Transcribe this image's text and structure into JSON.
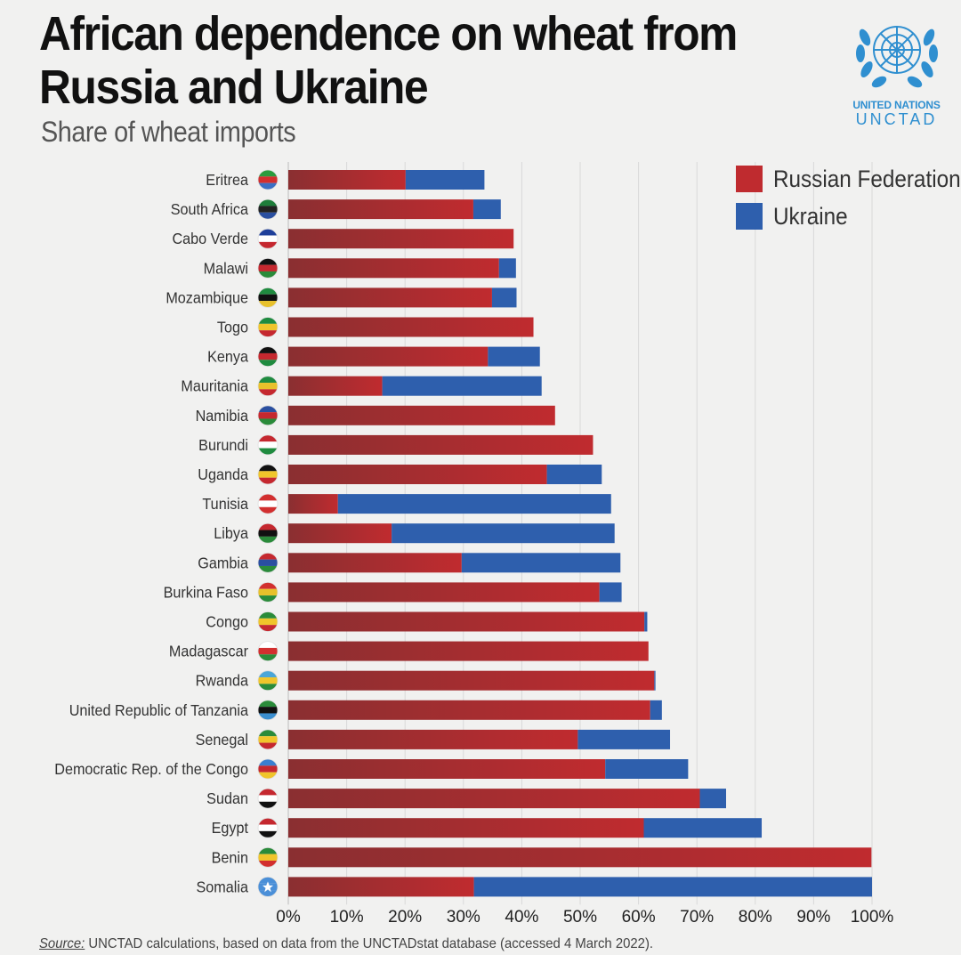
{
  "header": {
    "title": "African dependence on wheat from Russia and Ukraine",
    "subtitle": "Share of wheat imports"
  },
  "logo": {
    "name": "un-emblem-icon",
    "line1": "UNITED NATIONS",
    "line2": "UNCTAD",
    "color": "#2f8fd0"
  },
  "chart_data": {
    "type": "bar",
    "orientation": "horizontal",
    "stacked": true,
    "title": "",
    "xlabel": "",
    "ylabel": "",
    "xlim": [
      0,
      100
    ],
    "grid": true,
    "legend": "top-right",
    "x_ticks": [
      "0%",
      "10%",
      "20%",
      "30%",
      "40%",
      "50%",
      "60%",
      "70%",
      "80%",
      "90%",
      "100%"
    ],
    "categories": [
      "Eritrea",
      "South Africa",
      "Cabo Verde",
      "Malawi",
      "Mozambique",
      "Togo",
      "Kenya",
      "Mauritania",
      "Namibia",
      "Burundi",
      "Uganda",
      "Tunisia",
      "Libya",
      "Gambia",
      "Burkina Faso",
      "Congo",
      "Madagascar",
      "Rwanda",
      "United Republic of Tanzania",
      "Senegal",
      "Democratic Rep. of the Congo",
      "Sudan",
      "Egypt",
      "Benin",
      "Somalia"
    ],
    "series": [
      {
        "name": "Russian Federation",
        "color": "#bf2b2f",
        "values": [
          20.1,
          31.7,
          38.6,
          36.1,
          34.9,
          42.0,
          34.2,
          16.1,
          45.7,
          52.2,
          44.3,
          8.5,
          17.7,
          29.7,
          53.3,
          61.0,
          61.7,
          62.7,
          62.0,
          49.6,
          54.3,
          70.5,
          60.9,
          99.9,
          31.8
        ],
        "flags": [
          "eritrea-flag-icon",
          "south-africa-flag-icon",
          "cabo-verde-flag-icon",
          "malawi-flag-icon",
          "mozambique-flag-icon",
          "togo-flag-icon",
          "kenya-flag-icon",
          "mauritania-flag-icon",
          "namibia-flag-icon",
          "burundi-flag-icon",
          "uganda-flag-icon",
          "tunisia-flag-icon",
          "libya-flag-icon",
          "gambia-flag-icon",
          "burkina-faso-flag-icon",
          "congo-flag-icon",
          "madagascar-flag-icon",
          "rwanda-flag-icon",
          "tanzania-flag-icon",
          "senegal-flag-icon",
          "dr-congo-flag-icon",
          "sudan-flag-icon",
          "egypt-flag-icon",
          "benin-flag-icon",
          "somalia-flag-icon"
        ]
      },
      {
        "name": "Ukraine",
        "color": "#2e5fad",
        "values": [
          13.5,
          4.7,
          0.0,
          2.9,
          4.2,
          0.0,
          8.9,
          27.3,
          0.0,
          0.0,
          9.4,
          46.8,
          38.2,
          27.2,
          3.8,
          0.5,
          0.0,
          0.2,
          2.0,
          15.8,
          14.2,
          4.5,
          20.2,
          0.0,
          68.2
        ]
      }
    ]
  },
  "source": {
    "label": "Source:",
    "text": " UNCTAD calculations, based on data from the UNCTADstat database (accessed 4 March 2022)."
  }
}
